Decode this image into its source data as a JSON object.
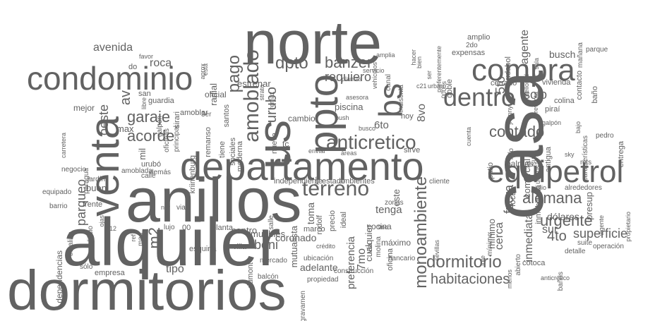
{
  "cloud": {
    "text_color": "#626262",
    "background": "#ffffff",
    "words": [
      "dormitorios",
      "alquiler",
      "anillos",
      "casa",
      "departamento",
      "norte",
      "condominio",
      "venta",
      "us",
      "compra",
      "equipetrol",
      "ppto",
      "terreno",
      "amoblado",
      "bs",
      "dentro",
      "anticretico",
      "dpto",
      "pago",
      "monoambiente",
      "dormitorio",
      "habitaciones",
      "alemana",
      "urgente",
      "superficie",
      "contado",
      "banzer",
      "requiero",
      "urubo",
      "garaje",
      "acorde",
      "av",
      "oeste",
      "parqueo",
      "m2",
      "beni",
      "tipo",
      "avenida",
      "roca",
      "buen",
      "max",
      "mil",
      "solo",
      "5to",
      "4to",
      "sur",
      "fuera",
      "cerca",
      "inmediata",
      "6to",
      "7mo",
      "8vo",
      "tenga",
      "toma",
      "este",
      "preferencia",
      "coronado",
      "adelante",
      "mutualista",
      "piscina",
      "agente",
      "busch",
      "vivienda",
      "comercial",
      "mínimo",
      "dólares",
      "presup",
      "estrenar",
      "oficial",
      "radial",
      "remanso",
      "amoblar",
      "guardia",
      "mejor",
      "frente",
      "calle",
      "ambientes",
      "independiente",
      "máximo",
      "cualquier",
      "cocina",
      "zonas",
      "marco",
      "rudolf",
      "precio",
      "ideal",
      "piraí",
      "colina",
      "entrega",
      "muebles",
      "planta",
      "lujo",
      "00",
      "centro",
      "esquina",
      "villa",
      "dumont",
      "empresa",
      "sólo",
      "dependencias",
      "equipado",
      "barrio",
      "negocio",
      "thoalina",
      "edificio",
      "jardín",
      "paragua",
      "urubó",
      "amoblada",
      "demás",
      "oficinas",
      "principal",
      "santos",
      "nueva",
      "moderna",
      "sociales",
      "tiene",
      "cambio",
      "tc",
      "bancario",
      "construcción",
      "ubicación",
      "crédito",
      "oficina",
      "vía",
      "molina",
      "estado",
      "salle",
      "propiedad",
      "gravamen",
      "mercado",
      "balcón",
      "hoy",
      "sirve",
      "cliente",
      "sevillas",
      "patio",
      "palmas",
      "local",
      "info",
      "isuto",
      "udepsa",
      "antigua",
      "inmobiliaria",
      "alrededores",
      "julio",
      "mts",
      "baños",
      "detalle",
      "suite",
      "operación",
      "cotoca",
      "menos",
      "abierto",
      "lote",
      "amplio",
      "expensas",
      "2do",
      "doble",
      "udabol",
      "bien",
      "cerrado",
      "mañana",
      "contacto",
      "parque",
      "baño",
      "características",
      "pedro",
      "propietario",
      "vigente",
      "bajo",
      "galpón",
      "sky",
      "anticrético",
      "sala",
      "preventa",
      "jhonny",
      "bellored",
      "c21",
      "urbari",
      "000bs",
      "hacer",
      "amplia",
      "plantas",
      "asesora",
      "áreas",
      "enviar",
      "busco",
      "bush",
      "strato",
      "remax",
      "servicio",
      "canal",
      "indistinta",
      "preferentemente",
      "vehículos",
      "ser",
      "favor",
      "aprox",
      "está",
      "carretera",
      "libre",
      "san",
      "do",
      "galpon",
      "3er",
      "kriinenburg",
      "sirari",
      "via",
      "ref",
      "nur",
      "ojas",
      "mas",
      "12",
      "km",
      "9no",
      "cuenta",
      "mínimo"
    ]
  }
}
